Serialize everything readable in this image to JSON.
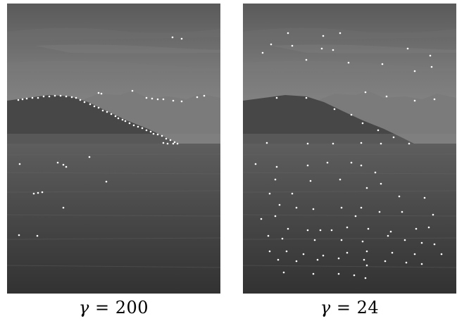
{
  "figure": {
    "panels": [
      {
        "id": "left",
        "caption_symbol": "γ",
        "caption_relation": "=",
        "caption_value": "200",
        "feature_point_color": "#ffffff"
      },
      {
        "id": "right",
        "caption_symbol": "γ",
        "caption_relation": "=",
        "caption_value": "24",
        "feature_point_color": "#ffffff"
      }
    ]
  },
  "colors": {
    "sky_top": "#5c5c5c",
    "sky_bottom": "#8c8c8c",
    "far_mountain": "#7e7e7e",
    "near_hill": "#4a4a4a",
    "water_top": "#5b5b5b",
    "water_bottom": "#333333"
  }
}
